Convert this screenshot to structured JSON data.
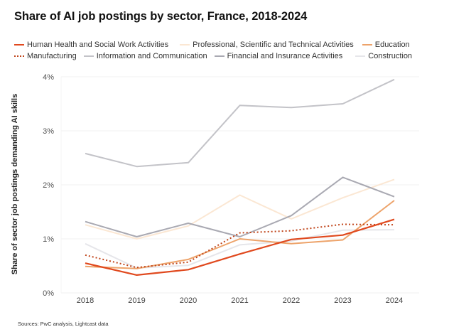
{
  "chart_data": {
    "type": "line",
    "title": "Share of AI job postings by sector, France, 2018-2024",
    "xlabel": "",
    "ylabel": "Share of sector job postings demanding AI skills",
    "x": [
      "2018",
      "2019",
      "2020",
      "2021",
      "2022",
      "2023",
      "2024"
    ],
    "ylim": [
      0,
      4
    ],
    "yticks": [
      0,
      1,
      2,
      3,
      4
    ],
    "ytick_labels": [
      "0%",
      "1%",
      "2%",
      "3%",
      "4%"
    ],
    "grid": "horizontal",
    "legend_position": "top-left",
    "source": "Sources: PwC analysis, Lightcast data",
    "series": [
      {
        "name": "Human Health and Social Work Activities",
        "color": "#e0491e",
        "style": "solid",
        "values": [
          0.55,
          0.33,
          0.43,
          0.72,
          0.99,
          1.07,
          1.36
        ]
      },
      {
        "name": "Professional, Scientific and Technical Activities",
        "color": "#fbe7d3",
        "style": "solid",
        "values": [
          1.26,
          1.0,
          1.24,
          1.81,
          1.37,
          1.76,
          2.1
        ]
      },
      {
        "name": "Education",
        "color": "#eda36a",
        "style": "solid",
        "values": [
          0.49,
          0.45,
          0.62,
          1.0,
          0.91,
          0.98,
          1.71
        ]
      },
      {
        "name": "Manufacturing",
        "color": "#c0441a",
        "style": "dotted",
        "values": [
          0.7,
          0.47,
          0.57,
          1.11,
          1.15,
          1.27,
          1.26
        ]
      },
      {
        "name": "Information and Communication",
        "color": "#c3c3c8",
        "style": "solid",
        "values": [
          2.58,
          2.34,
          2.41,
          3.47,
          3.43,
          3.5,
          3.95
        ]
      },
      {
        "name": "Financial and Insurance Activities",
        "color": "#a9a9b2",
        "style": "solid",
        "values": [
          1.32,
          1.04,
          1.29,
          1.04,
          1.43,
          2.14,
          1.78
        ]
      },
      {
        "name": "Construction",
        "color": "#e6e6ea",
        "style": "solid",
        "values": [
          0.91,
          0.46,
          0.51,
          0.89,
          0.96,
          1.16,
          1.17
        ]
      }
    ]
  },
  "legend": {
    "rows": [
      [
        0,
        1,
        2
      ],
      [
        3,
        4,
        5,
        6
      ]
    ]
  }
}
